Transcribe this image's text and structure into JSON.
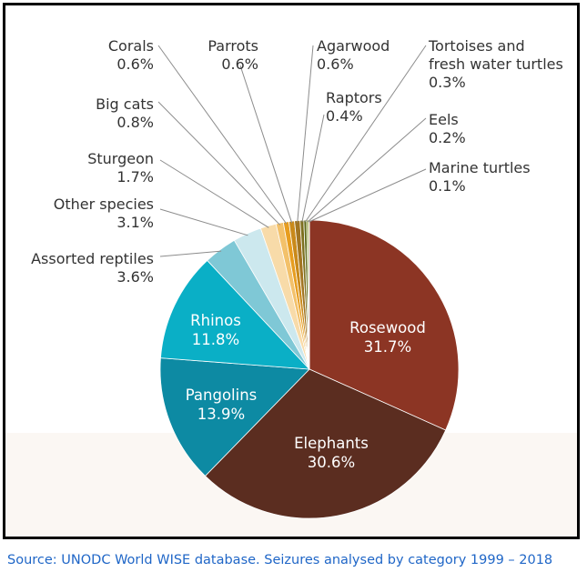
{
  "chart_data": {
    "type": "pie",
    "title": "",
    "slices": [
      {
        "label": "Rosewood",
        "value": 31.7,
        "display": "31.7%",
        "color": "#8c3524"
      },
      {
        "label": "Elephants",
        "value": 30.6,
        "display": "30.6%",
        "color": "#5b2d20"
      },
      {
        "label": "Pangolins",
        "value": 13.9,
        "display": "13.9%",
        "color": "#0d8aa3"
      },
      {
        "label": "Rhinos",
        "value": 11.8,
        "display": "11.8%",
        "color": "#0aafc6"
      },
      {
        "label": "Assorted reptiles",
        "value": 3.6,
        "display": "3.6%",
        "color": "#7fc8d6"
      },
      {
        "label": "Other species",
        "value": 3.1,
        "display": "3.1%",
        "color": "#cce8ee"
      },
      {
        "label": "Sturgeon",
        "value": 1.7,
        "display": "1.7%",
        "color": "#f8dba9"
      },
      {
        "label": "Big cats",
        "value": 0.8,
        "display": "0.8%",
        "color": "#f3c16a"
      },
      {
        "label": "Corals",
        "value": 0.6,
        "display": "0.6%",
        "color": "#e79d1f"
      },
      {
        "label": "Parrots",
        "value": 0.6,
        "display": "0.6%",
        "color": "#c9891a"
      },
      {
        "label": "Agarwood",
        "value": 0.6,
        "display": "0.6%",
        "color": "#a27522"
      },
      {
        "label": "Raptors",
        "value": 0.4,
        "display": "0.4%",
        "color": "#7d6f1e"
      },
      {
        "label": "Tortoises and fresh water turtles",
        "value": 0.3,
        "display": "0.3%",
        "color": "#5e6a1a"
      },
      {
        "label": "Eels",
        "value": 0.2,
        "display": "0.2%",
        "color": "#8a9228"
      },
      {
        "label": "Marine turtles",
        "value": 0.1,
        "display": "0.1%",
        "color": "#b4b23a"
      }
    ]
  },
  "caption": "Source: UNODC World WISE database. Seizures analysed by category 1999 – 2018"
}
